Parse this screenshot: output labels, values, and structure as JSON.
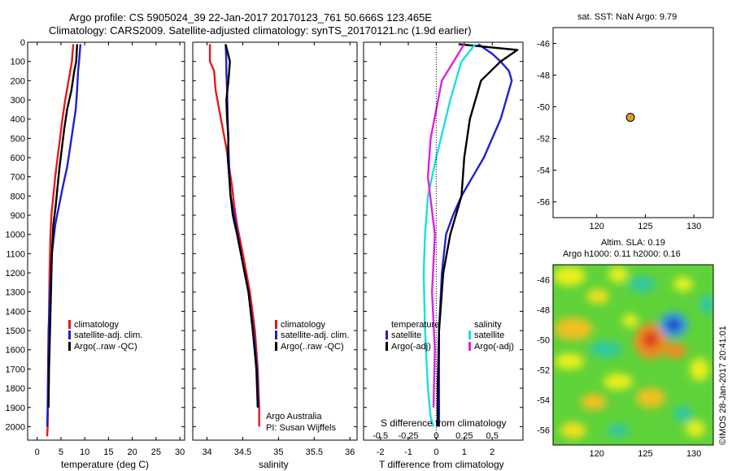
{
  "header": {
    "line1": "Argo profile: CS 5905024_39 22-Jan-2017 20170123_761 50.666S 123.465E",
    "line2": "Climatology: CARS2009. Satellite-adjusted climatology: synTS_20170121.nc (1.9d earlier)"
  },
  "colors": {
    "climatology": "#e41a1c",
    "satellite": "#1f1fd0",
    "argo": "#000000",
    "sal_satellite": "#19e0e0",
    "sal_argo": "#e020e0",
    "marker": "#e09a20"
  },
  "footer": {
    "credit_1": "Argo Australia",
    "credit_2": "PI: Susan Wijffels",
    "stamp": "©IMOS 28-Jan-2017 20:41:01"
  },
  "chart_data": [
    {
      "type": "line",
      "xlabel": "temperature (deg C)",
      "xlim": [
        -2,
        31
      ],
      "xticks": [
        0,
        5,
        10,
        15,
        20,
        25,
        30
      ],
      "ylim": [
        2070,
        0
      ],
      "yticks": [
        0,
        100,
        200,
        300,
        400,
        500,
        600,
        700,
        800,
        900,
        1000,
        1100,
        1200,
        1300,
        1400,
        1500,
        1600,
        1700,
        1800,
        1900,
        2000
      ],
      "legend": [
        "climatology",
        "satellite-adj. clim.",
        "Argo(..raw -QC)"
      ],
      "legend_position": "lower-center",
      "series": [
        {
          "name": "climatology",
          "color": "#e41a1c",
          "x": [
            7.6,
            7.3,
            6.6,
            5.9,
            5.3,
            4.8,
            4.3,
            3.8,
            3.4,
            3.0,
            2.8,
            2.6,
            2.5,
            2.4,
            2.3,
            2.2,
            2.1
          ],
          "y": [
            10,
            100,
            200,
            300,
            400,
            500,
            600,
            700,
            800,
            900,
            1000,
            1200,
            1400,
            1600,
            1800,
            2000,
            2050
          ]
        },
        {
          "name": "satellite-adj. clim.",
          "color": "#1f1fd0",
          "x": [
            9.1,
            8.8,
            8.6,
            8.4,
            8.1,
            7.5,
            6.9,
            6.3,
            5.4,
            4.6,
            3.8,
            3.1,
            2.7,
            2.4,
            2.3,
            2.2,
            2.1
          ],
          "y": [
            10,
            100,
            150,
            250,
            350,
            450,
            550,
            650,
            750,
            850,
            950,
            1100,
            1300,
            1500,
            1700,
            1900,
            2000
          ]
        },
        {
          "name": "Argo(..raw -QC)",
          "color": "#000000",
          "x": [
            8.4,
            8.2,
            7.8,
            7.2,
            6.3,
            5.7,
            5.2,
            4.7,
            4.3,
            3.9,
            3.4,
            3.1,
            2.9,
            2.7,
            2.5,
            2.4
          ],
          "y": [
            10,
            100,
            150,
            250,
            350,
            450,
            550,
            650,
            750,
            850,
            950,
            1100,
            1300,
            1500,
            1700,
            1900
          ]
        }
      ]
    },
    {
      "type": "line",
      "xlabel": "salinity",
      "xlim": [
        33.8,
        36.1
      ],
      "xticks": [
        34,
        34.5,
        35,
        35.5,
        36
      ],
      "ylim": [
        2070,
        0
      ],
      "legend": [
        "climatology",
        "satellite-adj. clim.",
        "Argo(..raw -QC)"
      ],
      "legend_position": "lower-right",
      "series": [
        {
          "name": "climatology",
          "color": "#e41a1c",
          "x": [
            34.04,
            34.04,
            34.1,
            34.12,
            34.17,
            34.22,
            34.27,
            34.31,
            34.35,
            34.38,
            34.42,
            34.5,
            34.6,
            34.67,
            34.71,
            34.73,
            34.73
          ],
          "y": [
            10,
            100,
            150,
            250,
            350,
            450,
            550,
            650,
            750,
            850,
            950,
            1100,
            1300,
            1500,
            1700,
            1900,
            2000
          ]
        },
        {
          "name": "satellite-adj. clim.",
          "color": "#1f1fd0",
          "x": [
            34.26,
            34.27,
            34.27,
            34.28,
            34.29,
            34.3,
            34.31,
            34.32,
            34.33,
            34.38,
            34.43,
            34.5,
            34.58,
            34.65,
            34.7,
            34.72
          ],
          "y": [
            10,
            100,
            150,
            250,
            400,
            550,
            650,
            750,
            800,
            900,
            1000,
            1150,
            1300,
            1500,
            1700,
            1900
          ]
        },
        {
          "name": "Argo(..raw -QC)",
          "color": "#000000",
          "x": [
            34.26,
            34.32,
            34.3,
            34.27,
            34.28,
            34.3,
            34.29,
            34.31,
            34.33,
            34.36,
            34.42,
            34.5,
            34.58,
            34.64,
            34.69,
            34.71
          ],
          "y": [
            10,
            100,
            200,
            300,
            400,
            500,
            600,
            700,
            800,
            900,
            1000,
            1150,
            1300,
            1500,
            1700,
            1900
          ]
        }
      ]
    },
    {
      "type": "line",
      "xlabel": "T difference from climatology",
      "xlim": [
        -2.6,
        3.1
      ],
      "xticks": [
        -2,
        -1,
        0,
        1,
        2
      ],
      "x2label": "S difference from climatology",
      "x2ticks": [
        -0.5,
        -0.25,
        0,
        0.25,
        0.5
      ],
      "ylim": [
        2070,
        0
      ],
      "legend": [
        "temperature",
        "satellite",
        "Argo(-adj)",
        "salinity",
        "satellite",
        "Argo(-adj)"
      ],
      "legend_position": "lower-center",
      "series": [
        {
          "name": "satellite",
          "color": "#1f1fd0",
          "x": [
            1.5,
            2.0,
            2.3,
            2.6,
            2.7,
            2.5,
            2.3,
            2.0,
            1.7,
            1.3,
            0.9,
            0.6,
            0.35,
            0.2,
            0.1,
            0.1,
            0.1
          ],
          "y": [
            10,
            60,
            100,
            150,
            200,
            300,
            400,
            500,
            600,
            700,
            800,
            900,
            1000,
            1200,
            1500,
            1800,
            2000
          ]
        },
        {
          "name": "Argo(-adj)",
          "color": "#000000",
          "x": [
            0.8,
            2.9,
            2.3,
            1.6,
            1.2,
            1.0,
            0.9,
            0.5,
            0.25,
            0.1,
            0.05,
            0.05
          ],
          "y": [
            10,
            40,
            100,
            200,
            400,
            600,
            800,
            1000,
            1200,
            1500,
            1800,
            2000
          ]
        },
        {
          "name": "satellite",
          "color": "#19e0e0",
          "x": [
            1.4,
            0.9,
            0.5,
            0.0,
            -0.3,
            -0.4,
            -0.45,
            -0.4,
            -0.3,
            -0.2,
            -0.1
          ],
          "y": [
            10,
            100,
            300,
            600,
            800,
            1000,
            1200,
            1500,
            1800,
            1950,
            2000
          ]
        },
        {
          "name": "Argo(-adj)",
          "color": "#e020e0",
          "x": [
            1.0,
            0.2,
            -0.2,
            -0.3,
            -0.05,
            -0.15,
            -0.05,
            -0.1
          ],
          "y": [
            10,
            200,
            500,
            700,
            1000,
            1300,
            1600,
            1900
          ]
        }
      ]
    },
    {
      "type": "scatter",
      "title": "sat. SST: NaN Argo: 9.79",
      "xlim": [
        115.5,
        132
      ],
      "ylim": [
        -57,
        -45
      ],
      "xticks": [
        120,
        125,
        130
      ],
      "yticks": [
        -46,
        -48,
        -50,
        -52,
        -54,
        -56
      ],
      "points": [
        {
          "x": 123.465,
          "y": -50.666
        }
      ]
    },
    {
      "type": "heatmap",
      "title": "Altim. SLA: 0.19",
      "subtitle": "Argo h1000: 0.11 h2000: 0.16",
      "xlim": [
        115.5,
        132
      ],
      "ylim": [
        -57,
        -45
      ],
      "xticks": [
        120,
        125,
        130
      ],
      "yticks": [
        -46,
        -48,
        -50,
        -52,
        -54,
        -56
      ]
    }
  ]
}
